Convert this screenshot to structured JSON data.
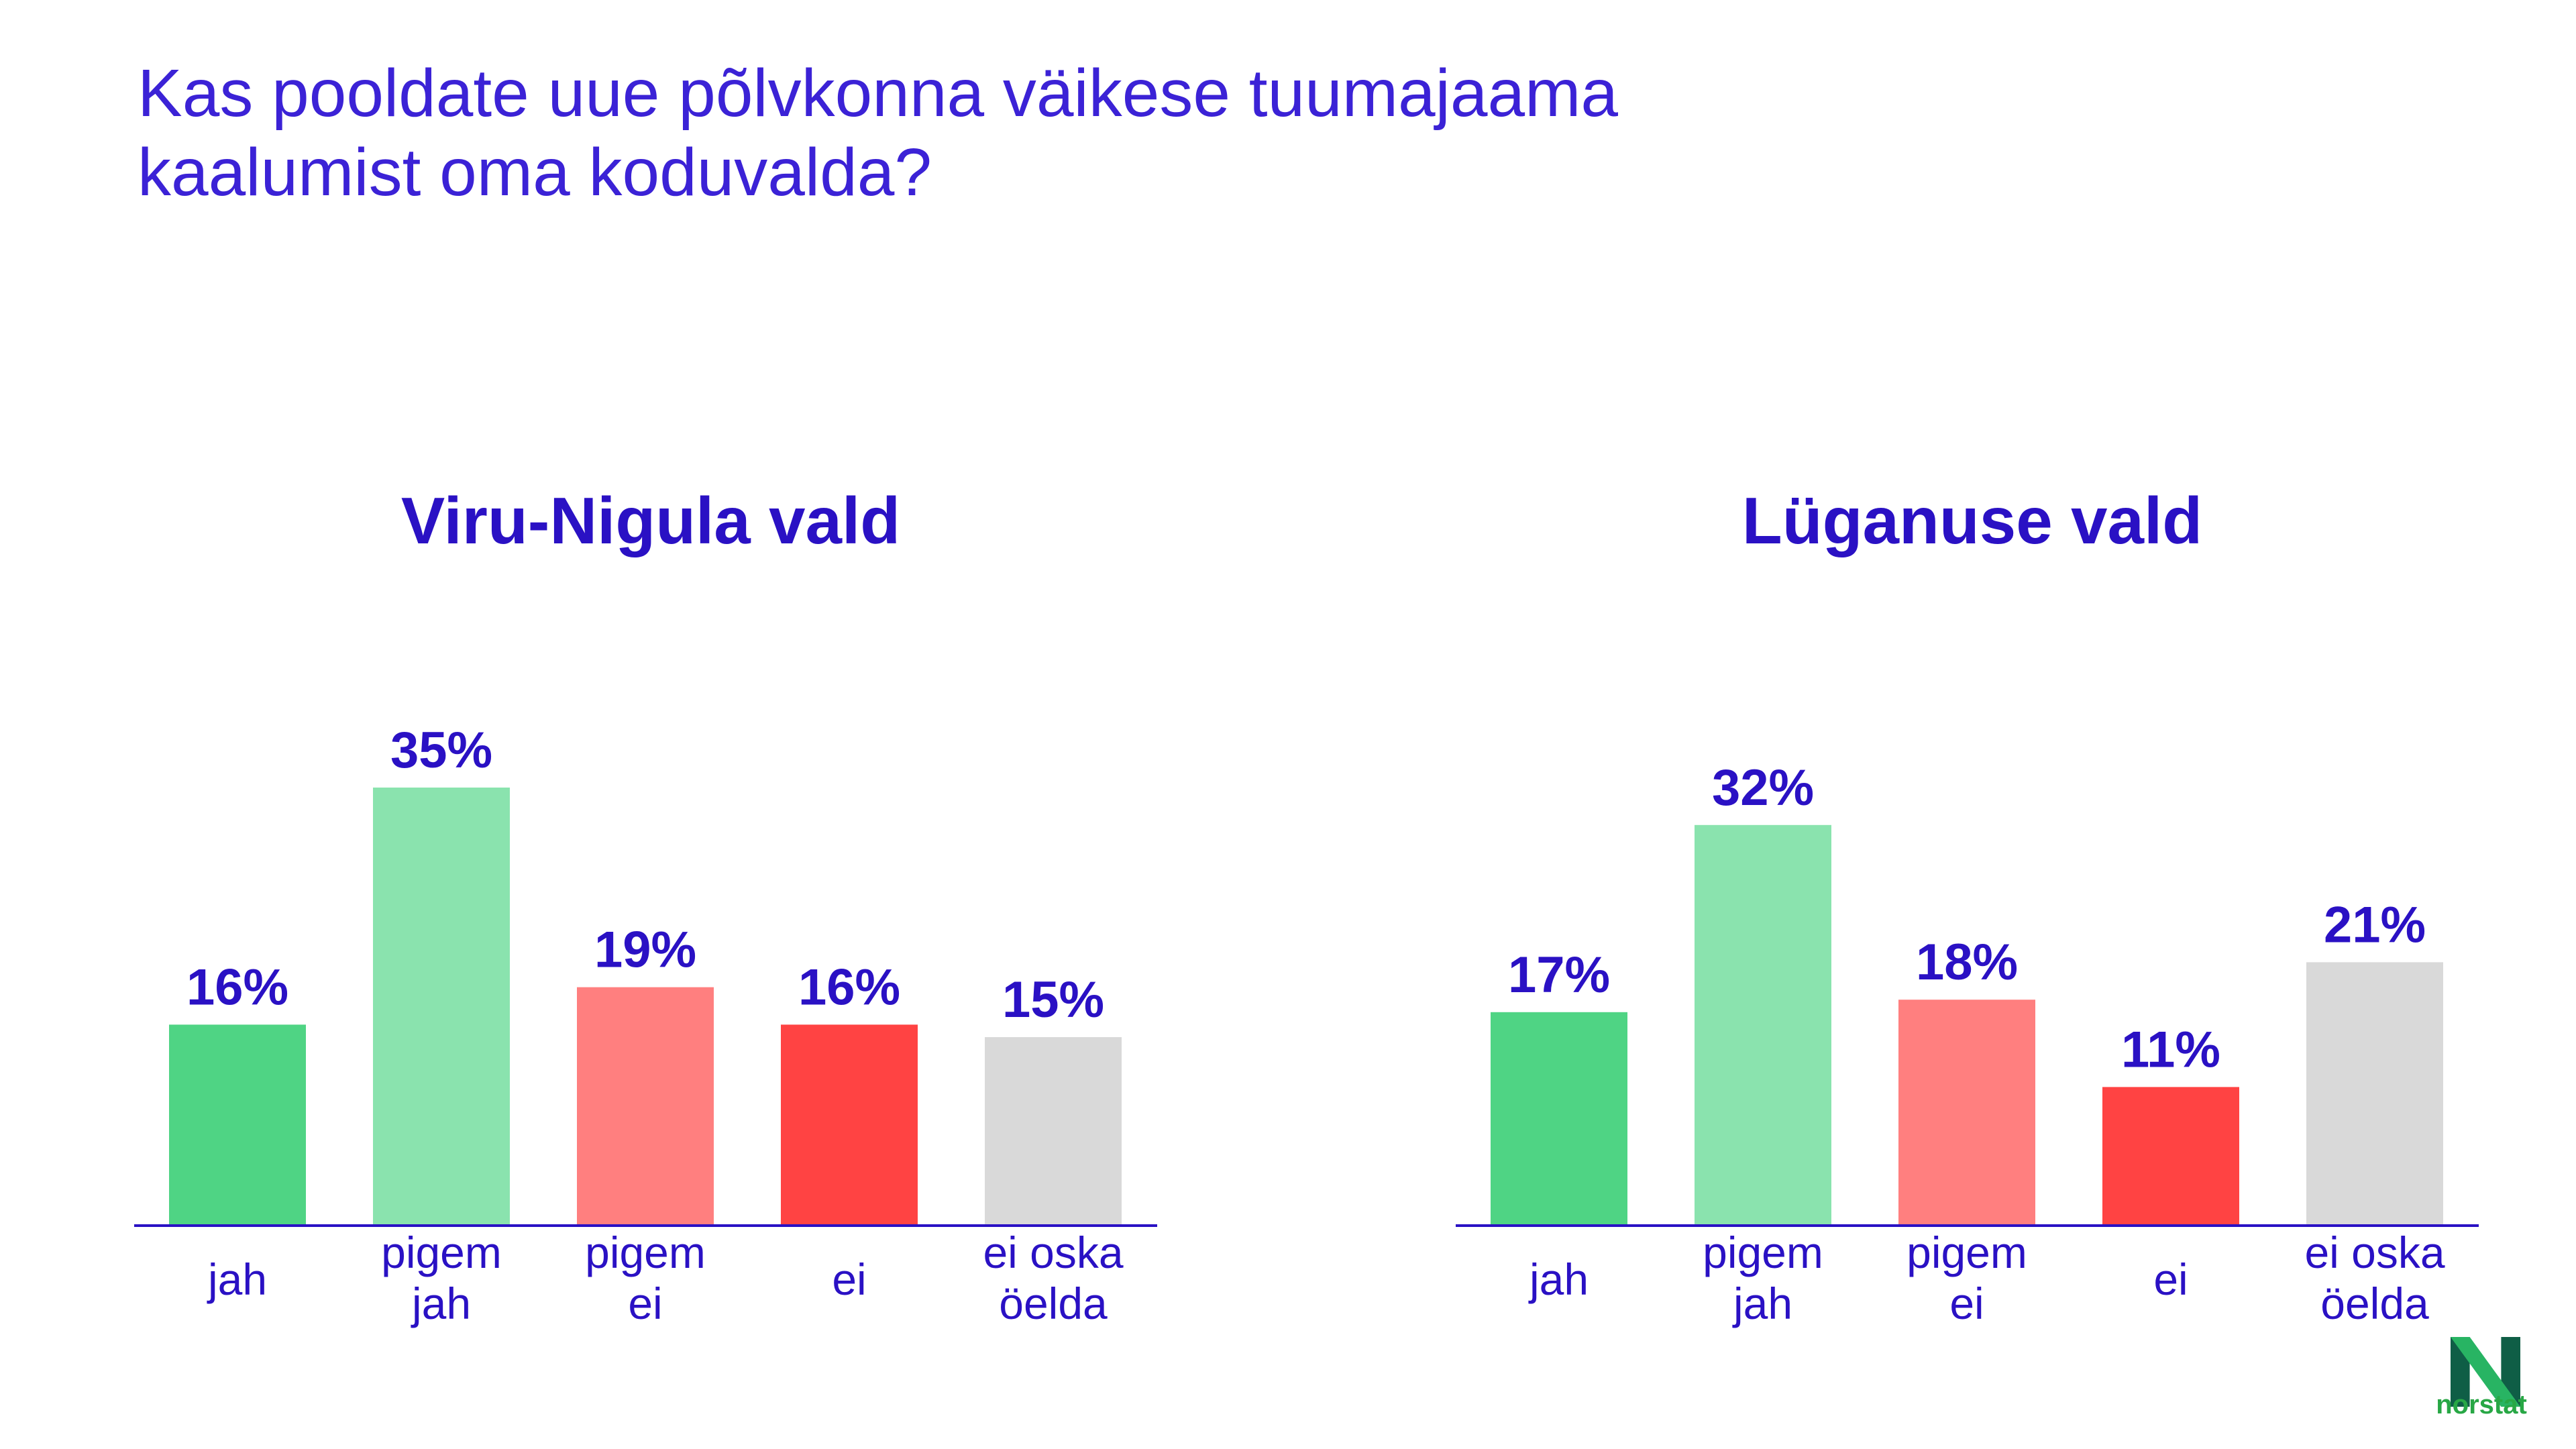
{
  "question": {
    "line1": "Kas pooldate uue põlvkonna väikese tuumajaama",
    "line2": "kaalumist oma koduvalda?"
  },
  "brand": {
    "name": "norstat",
    "color_dark": "#0f5e46",
    "color_light": "#28b463"
  },
  "chart_data": [
    {
      "type": "bar",
      "title": "Viru-Nigula vald",
      "categories": [
        [
          "jah"
        ],
        [
          "pigem",
          "jah"
        ],
        [
          "pigem",
          "ei"
        ],
        [
          "ei"
        ],
        [
          "ei oska",
          "öelda"
        ]
      ],
      "values": [
        16,
        35,
        19,
        16,
        15
      ],
      "labels": [
        "16%",
        "35%",
        "19%",
        "16%",
        "15%"
      ],
      "colors": [
        "#4fd484",
        "#8ae3ae",
        "#ff7f7f",
        "#ff4343",
        "#d9d9d9"
      ],
      "ylim": [
        0,
        40
      ]
    },
    {
      "type": "bar",
      "title": "Lüganuse vald",
      "categories": [
        [
          "jah"
        ],
        [
          "pigem",
          "jah"
        ],
        [
          "pigem",
          "ei"
        ],
        [
          "ei"
        ],
        [
          "ei oska",
          "öelda"
        ]
      ],
      "values": [
        17,
        32,
        18,
        11,
        21
      ],
      "labels": [
        "17%",
        "32%",
        "18%",
        "11%",
        "21%"
      ],
      "colors": [
        "#4fd484",
        "#8ae3ae",
        "#ff7f7f",
        "#ff4343",
        "#d9d9d9"
      ],
      "ylim": [
        0,
        40
      ]
    }
  ]
}
